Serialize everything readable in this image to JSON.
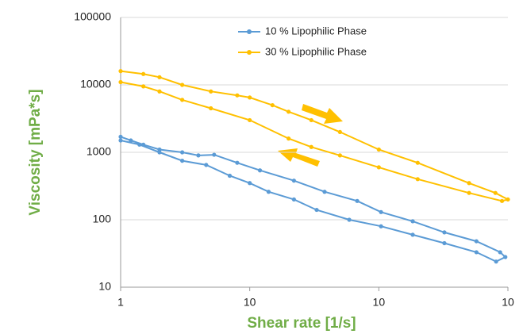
{
  "chart_data": {
    "type": "line",
    "x_label": "Shear rate [1/s]",
    "y_label": "Viscosity [mPa*s]",
    "xscale": "log",
    "yscale": "log",
    "grid": true,
    "legend": "top",
    "xlim": [
      1,
      1000
    ],
    "xticks": [
      1,
      {
        "value": 10,
        "label": "10"
      },
      {
        "value": 100,
        "label": "10"
      },
      {
        "value": 1000,
        "label": "10"
      }
    ],
    "ylim": [
      10,
      100000
    ],
    "yticks": [
      10,
      100,
      1000,
      10000,
      100000
    ],
    "series": [
      {
        "name": "10 % Lipophilic Phase",
        "color": "#5b9bd5",
        "x": [
          1,
          1.2,
          1.5,
          2,
          3,
          4,
          5.3,
          8,
          12,
          22,
          38,
          68,
          104,
          183,
          322,
          570,
          870,
          955,
          810,
          570,
          322,
          183,
          104,
          59,
          33,
          22,
          14,
          10,
          7,
          4.6,
          3,
          2,
          1.4,
          1
        ],
        "values": [
          1700,
          1500,
          1300,
          1100,
          1000,
          900,
          920,
          700,
          540,
          380,
          260,
          190,
          130,
          95,
          65,
          48,
          33,
          28,
          24,
          33,
          45,
          60,
          80,
          100,
          140,
          200,
          260,
          350,
          450,
          650,
          750,
          1000,
          1300,
          1500
        ]
      },
      {
        "name": "30 % Lipophilic Phase",
        "color": "#ffc000",
        "x": [
          1,
          1.5,
          2,
          3,
          5,
          8,
          10,
          15,
          20,
          30,
          50,
          100,
          200,
          500,
          800,
          1000,
          900,
          500,
          200,
          100,
          50,
          30,
          20,
          10,
          5,
          3,
          2,
          1.5,
          1
        ],
        "values": [
          16000,
          14500,
          13000,
          10000,
          8000,
          7000,
          6500,
          5000,
          4000,
          3000,
          2000,
          1100,
          700,
          350,
          250,
          200,
          190,
          250,
          400,
          600,
          900,
          1200,
          1600,
          3000,
          4500,
          6000,
          8000,
          9500,
          11000
        ]
      }
    ]
  }
}
